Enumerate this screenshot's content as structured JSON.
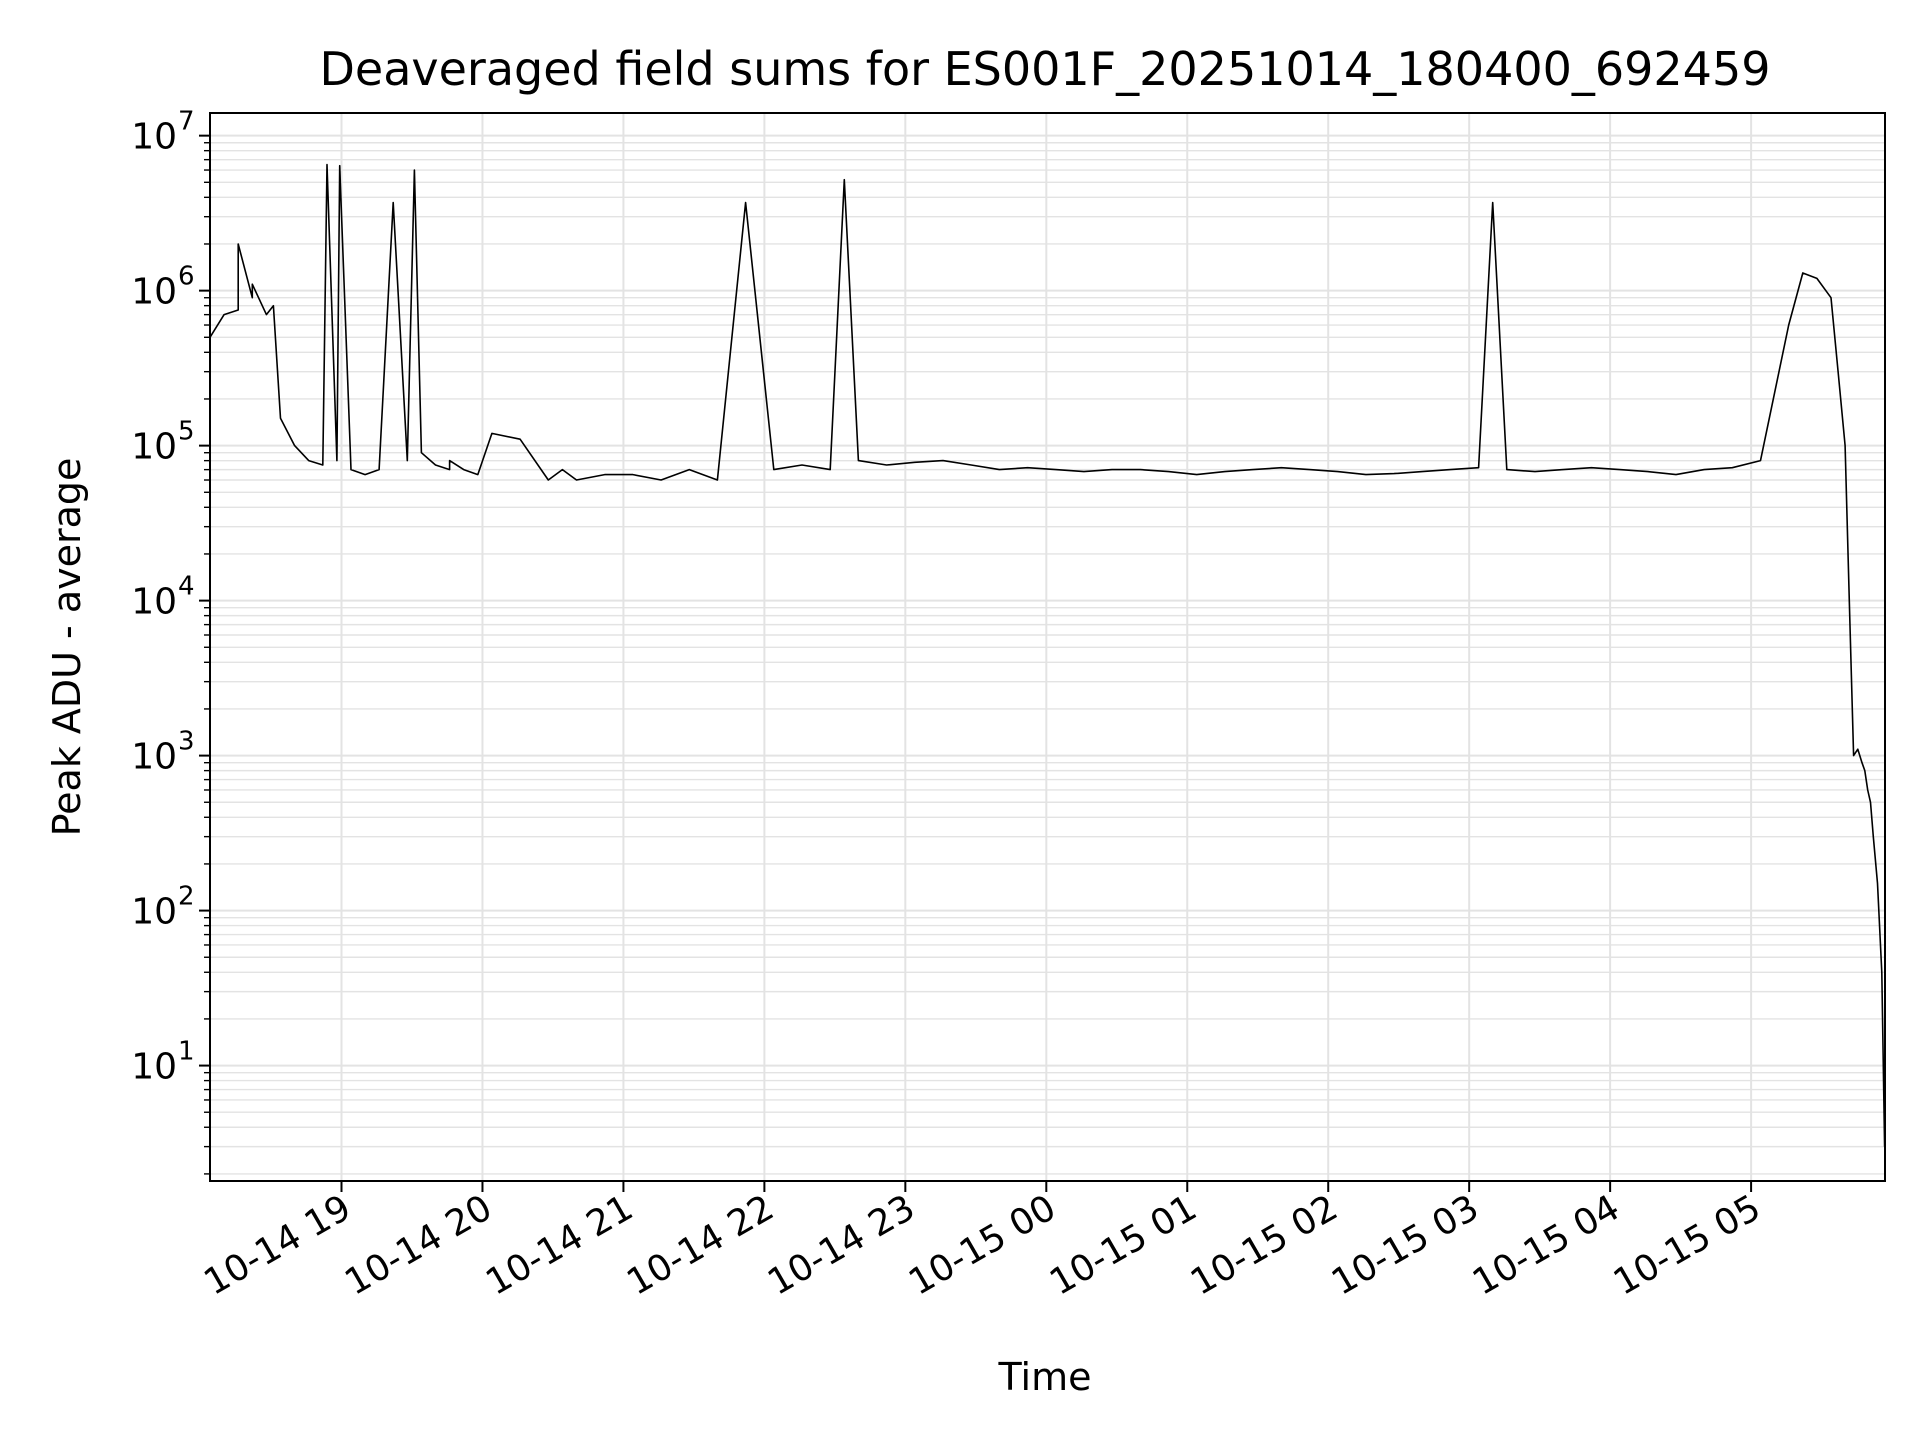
{
  "chart_data": {
    "type": "line",
    "title": "Deaveraged field sums for ES001F_20251014_180400_692459",
    "xlabel": "Time",
    "ylabel": "Peak ADU - average",
    "yscale": "log",
    "ylim": [
      1.8,
      14000000
    ],
    "xlim": [
      "10-14 18:04",
      "10-15 05:57"
    ],
    "grid": true,
    "line_color": "#000000",
    "grid_color": "#e3e3e3",
    "x_ticks": [
      {
        "label": "10-14 19",
        "hours_since_1804": 0.933
      },
      {
        "label": "10-14 20",
        "hours_since_1804": 1.933
      },
      {
        "label": "10-14 21",
        "hours_since_1804": 2.933
      },
      {
        "label": "10-14 22",
        "hours_since_1804": 3.933
      },
      {
        "label": "10-14 23",
        "hours_since_1804": 4.933
      },
      {
        "label": "10-15 00",
        "hours_since_1804": 5.933
      },
      {
        "label": "10-15 01",
        "hours_since_1804": 6.933
      },
      {
        "label": "10-15 02",
        "hours_since_1804": 7.933
      },
      {
        "label": "10-15 03",
        "hours_since_1804": 8.933
      },
      {
        "label": "10-15 04",
        "hours_since_1804": 9.933
      },
      {
        "label": "10-15 05",
        "hours_since_1804": 10.933
      }
    ],
    "y_ticks": [
      {
        "base": "10",
        "exp": "1",
        "value": 10
      },
      {
        "base": "10",
        "exp": "2",
        "value": 100
      },
      {
        "base": "10",
        "exp": "3",
        "value": 1000
      },
      {
        "base": "10",
        "exp": "4",
        "value": 10000
      },
      {
        "base": "10",
        "exp": "5",
        "value": 100000
      },
      {
        "base": "10",
        "exp": "6",
        "value": 1000000
      },
      {
        "base": "10",
        "exp": "7",
        "value": 10000000
      }
    ],
    "x_range_hours": [
      0,
      11.883
    ],
    "series": [
      {
        "name": "Peak ADU - average",
        "x_hours": [
          0.0,
          0.1,
          0.2,
          0.2,
          0.3,
          0.3,
          0.4,
          0.45,
          0.5,
          0.6,
          0.7,
          0.8,
          0.83,
          0.9,
          0.92,
          1.0,
          1.1,
          1.2,
          1.3,
          1.4,
          1.45,
          1.5,
          1.6,
          1.7,
          1.7,
          1.8,
          1.9,
          2.0,
          2.2,
          2.4,
          2.5,
          2.6,
          2.8,
          3.0,
          3.2,
          3.4,
          3.6,
          3.8,
          4.0,
          4.2,
          4.4,
          4.5,
          4.6,
          4.8,
          5.0,
          5.2,
          5.4,
          5.6,
          5.8,
          6.0,
          6.2,
          6.4,
          6.6,
          6.8,
          7.0,
          7.2,
          7.4,
          7.6,
          7.8,
          8.0,
          8.2,
          8.4,
          8.6,
          8.8,
          9.0,
          9.1,
          9.2,
          9.4,
          9.6,
          9.8,
          10.0,
          10.2,
          10.4,
          10.6,
          10.8,
          11.0,
          11.2,
          11.3,
          11.4,
          11.5,
          11.55,
          11.6,
          11.63,
          11.66,
          11.69,
          11.72,
          11.74,
          11.76,
          11.78,
          11.8,
          11.83,
          11.86,
          11.88
        ],
        "y_values": [
          500000,
          700000,
          750000,
          2000000,
          900000,
          1100000,
          700000,
          800000,
          150000,
          100000,
          80000,
          75000,
          6500000,
          80000,
          6400000,
          70000,
          65000,
          70000,
          3700000,
          80000,
          6000000,
          90000,
          75000,
          70000,
          80000,
          70000,
          65000,
          120000,
          110000,
          60000,
          70000,
          60000,
          65000,
          65000,
          60000,
          70000,
          60000,
          3700000,
          70000,
          75000,
          70000,
          5200000,
          80000,
          75000,
          78000,
          80000,
          75000,
          70000,
          72000,
          70000,
          68000,
          70000,
          70000,
          68000,
          65000,
          68000,
          70000,
          72000,
          70000,
          68000,
          65000,
          66000,
          68000,
          70000,
          72000,
          3700000,
          70000,
          68000,
          70000,
          72000,
          70000,
          68000,
          65000,
          70000,
          72000,
          80000,
          600000,
          1300000,
          1200000,
          900000,
          300000,
          100000,
          10000,
          1000,
          1100,
          900,
          800,
          600,
          500,
          300,
          150,
          40,
          3
        ]
      }
    ]
  }
}
